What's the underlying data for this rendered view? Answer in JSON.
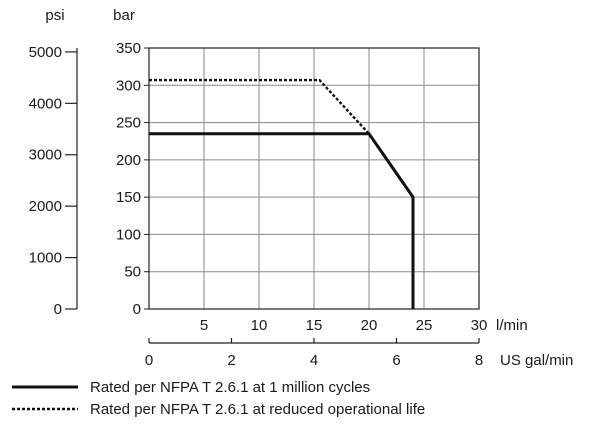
{
  "chart_data": {
    "type": "line",
    "psi_axis": {
      "label": "psi",
      "ticks": [
        0,
        1000,
        2000,
        3000,
        4000,
        5000
      ],
      "range": [
        0,
        5076
      ]
    },
    "bar_axis": {
      "label": "bar",
      "ticks": [
        0,
        50,
        100,
        150,
        200,
        250,
        300,
        350
      ],
      "range": [
        0,
        350
      ]
    },
    "lmin_axis": {
      "label": "l/min",
      "ticks": [
        5,
        10,
        15,
        20,
        25,
        30
      ],
      "range": [
        0,
        30
      ]
    },
    "gal_axis": {
      "label": "US gal/min",
      "ticks": [
        0,
        2,
        4,
        6,
        8
      ],
      "range": [
        0,
        8
      ]
    },
    "grid": true,
    "series": [
      {
        "name": "Rated per NFPA T 2.6.1 at 1 million cycles",
        "style": "solid",
        "x": [
          0,
          20,
          24,
          24
        ],
        "y": [
          235,
          235,
          150,
          0
        ]
      },
      {
        "name": "Rated per NFPA T 2.6.1 at reduced operational life",
        "style": "dotted",
        "x": [
          0,
          15.5,
          20
        ],
        "y": [
          307,
          307,
          235
        ]
      }
    ],
    "legend_position": "bottom-left"
  }
}
